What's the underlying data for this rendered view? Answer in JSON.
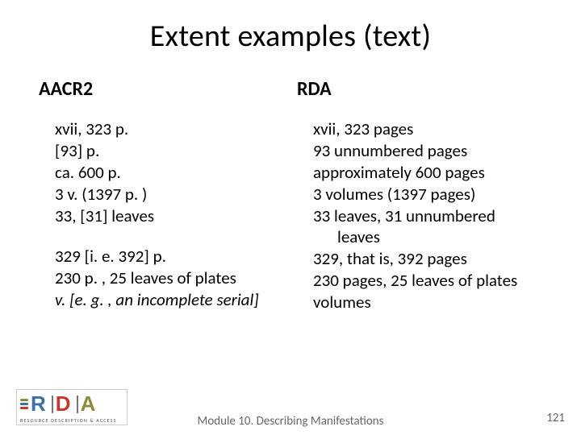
{
  "title": "Extent examples (text)",
  "left": {
    "header": "AACR2",
    "block1": [
      "xvii, 323 p.",
      "[93] p.",
      "ca. 600 p.",
      "3 v. (1397 p. )",
      "33, [31] leaves"
    ],
    "block2": [
      "329 [i. e. 392] p.",
      "230 p. , 25 leaves of plates"
    ],
    "block2_italic": "v. [e. g. , an incomplete serial]"
  },
  "right": {
    "header": "RDA",
    "lines": [
      "xvii, 323 pages",
      "93 unnumbered pages",
      "approximately 600 pages",
      "3 volumes (1397 pages)",
      "33 leaves, 31 unnumbered"
    ],
    "hang": "leaves",
    "lines2": [
      "329, that is, 392 pages",
      "230 pages, 25 leaves of plates",
      "volumes"
    ]
  },
  "footer_text": "Module 10. Describing Manifestations",
  "page_num": "121",
  "logo_tag": "RESOURCE DESCRIPTION & ACCESS"
}
